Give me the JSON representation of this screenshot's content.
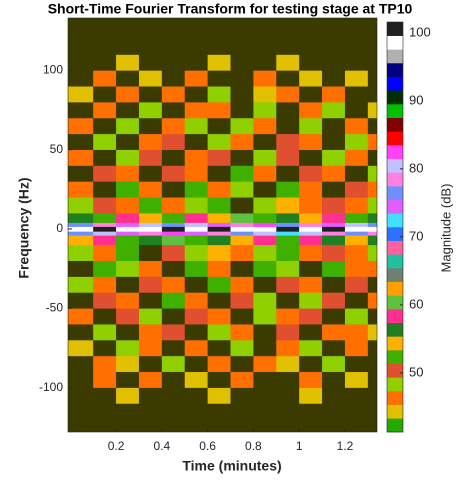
{
  "chart_data": {
    "type": "spectrogram",
    "title": "Short-Time Fourier Transform for testing stage at TP10",
    "xlabel": "Time (minutes)",
    "ylabel": "Frequency (Hz)",
    "xlim": [
      -0.01,
      1.34
    ],
    "ylim": [
      -128,
      133
    ],
    "xticks": [
      0.2,
      0.4,
      0.6,
      0.8,
      1,
      1.2
    ],
    "yticks": [
      -100,
      -50,
      0,
      50,
      100
    ],
    "time_edges": [
      -0.01,
      0.1,
      0.2,
      0.3,
      0.4,
      0.5,
      0.6,
      0.7,
      0.8,
      0.9,
      1.0,
      1.1,
      1.2,
      1.3,
      1.34
    ],
    "frequency_edges": [
      -130,
      -120,
      -110,
      -100,
      -90,
      -80,
      -70,
      -60,
      -50,
      -40,
      -30,
      -20,
      -10,
      -4,
      -1.5,
      1.5,
      4,
      10,
      20,
      30,
      40,
      50,
      60,
      70,
      80,
      90,
      100,
      110,
      120,
      130
    ],
    "magnitude": [
      [
        40,
        40,
        40,
        40,
        40,
        40,
        40,
        40,
        40,
        40,
        40,
        40,
        40,
        40
      ],
      [
        40,
        40,
        40,
        40,
        40,
        40,
        40,
        40,
        40,
        40,
        40,
        40,
        40,
        40
      ],
      [
        40,
        40,
        45,
        40,
        40,
        40,
        44,
        40,
        40,
        40,
        45,
        40,
        40,
        40
      ],
      [
        40,
        46,
        40,
        47,
        40,
        45,
        40,
        46,
        40,
        40,
        47,
        40,
        45,
        40
      ],
      [
        40,
        47,
        45,
        40,
        48,
        40,
        46,
        40,
        47,
        45,
        40,
        48,
        40,
        40
      ],
      [
        45,
        40,
        48,
        46,
        40,
        47,
        40,
        49,
        40,
        46,
        48,
        40,
        47,
        40
      ],
      [
        40,
        49,
        40,
        47,
        50,
        40,
        48,
        46,
        40,
        50,
        40,
        47,
        46,
        45
      ],
      [
        47,
        40,
        50,
        48,
        40,
        51,
        46,
        40,
        49,
        47,
        51,
        40,
        48,
        40
      ],
      [
        40,
        50,
        47,
        40,
        52,
        46,
        40,
        51,
        48,
        40,
        49,
        50,
        40,
        47
      ],
      [
        48,
        46,
        40,
        51,
        47,
        40,
        52,
        47,
        40,
        50,
        46,
        40,
        51,
        40
      ],
      [
        40,
        52,
        49,
        46,
        40,
        53,
        47,
        40,
        52,
        48,
        40,
        53,
        47,
        46
      ],
      [
        49,
        47,
        53,
        40,
        50,
        48,
        54,
        46,
        49,
        53,
        47,
        50,
        46,
        48
      ],
      [
        54,
        58,
        52,
        56,
        60,
        53,
        57,
        55,
        59,
        52,
        58,
        56,
        54,
        57
      ],
      [
        76,
        80,
        74,
        78,
        82,
        75,
        79,
        77,
        81,
        73,
        80,
        78,
        76,
        79
      ],
      [
        99,
        100,
        99,
        98,
        100,
        99,
        100,
        99,
        98,
        100,
        99,
        100,
        99,
        98
      ],
      [
        77,
        79,
        75,
        81,
        76,
        80,
        74,
        78,
        82,
        76,
        79,
        75,
        80,
        77
      ],
      [
        56,
        53,
        59,
        55,
        52,
        58,
        54,
        60,
        53,
        57,
        55,
        59,
        52,
        56
      ],
      [
        48,
        50,
        46,
        53,
        47,
        49,
        52,
        40,
        48,
        54,
        46,
        50,
        47,
        49
      ],
      [
        46,
        40,
        52,
        47,
        40,
        53,
        46,
        49,
        40,
        52,
        47,
        40,
        51,
        46
      ],
      [
        40,
        51,
        46,
        40,
        50,
        47,
        40,
        52,
        46,
        40,
        50,
        47,
        40,
        48
      ],
      [
        47,
        40,
        49,
        51,
        40,
        46,
        50,
        40,
        48,
        51,
        40,
        49,
        46,
        40
      ],
      [
        40,
        48,
        40,
        47,
        50,
        40,
        49,
        46,
        40,
        50,
        47,
        40,
        48,
        46
      ],
      [
        46,
        40,
        48,
        40,
        47,
        49,
        40,
        48,
        46,
        40,
        49,
        40,
        47,
        40
      ],
      [
        40,
        47,
        40,
        48,
        40,
        46,
        47,
        40,
        49,
        40,
        46,
        48,
        40,
        45
      ],
      [
        45,
        40,
        47,
        40,
        46,
        40,
        48,
        40,
        45,
        47,
        40,
        46,
        40,
        40
      ],
      [
        40,
        46,
        40,
        45,
        40,
        47,
        40,
        40,
        46,
        40,
        45,
        40,
        44,
        40
      ],
      [
        40,
        40,
        44,
        40,
        40,
        40,
        45,
        40,
        40,
        44,
        40,
        40,
        40,
        40
      ],
      [
        40,
        40,
        40,
        40,
        40,
        40,
        40,
        40,
        40,
        40,
        40,
        40,
        40,
        40
      ],
      [
        40,
        40,
        40,
        40,
        40,
        40,
        40,
        40,
        40,
        40,
        40,
        40,
        40,
        40
      ]
    ],
    "clim": [
      41.3,
      101.6
    ],
    "below_color": "#3b3b00",
    "colormap": [
      "#22aa00",
      "#e0c000",
      "#ff7000",
      "#90d000",
      "#e05030",
      "#40b000",
      "#ffb000",
      "#208020",
      "#ff3090",
      "#60c040",
      "#ffa000",
      "#708070",
      "#20c0a0",
      "#ff60a0",
      "#3070ff",
      "#40e0ff",
      "#e060ff",
      "#7090ff",
      "#ff80e0",
      "#c0c0ff",
      "#ff40ff",
      "#ff0000",
      "#800000",
      "#00c000",
      "#003000",
      "#0000ff",
      "#000080",
      "#b0b0b0",
      "#ffffff",
      "#202020"
    ],
    "colorbar_label": "Magnitude (dB)",
    "colorbar_ticks": [
      50,
      60,
      70,
      80,
      90,
      100
    ]
  }
}
